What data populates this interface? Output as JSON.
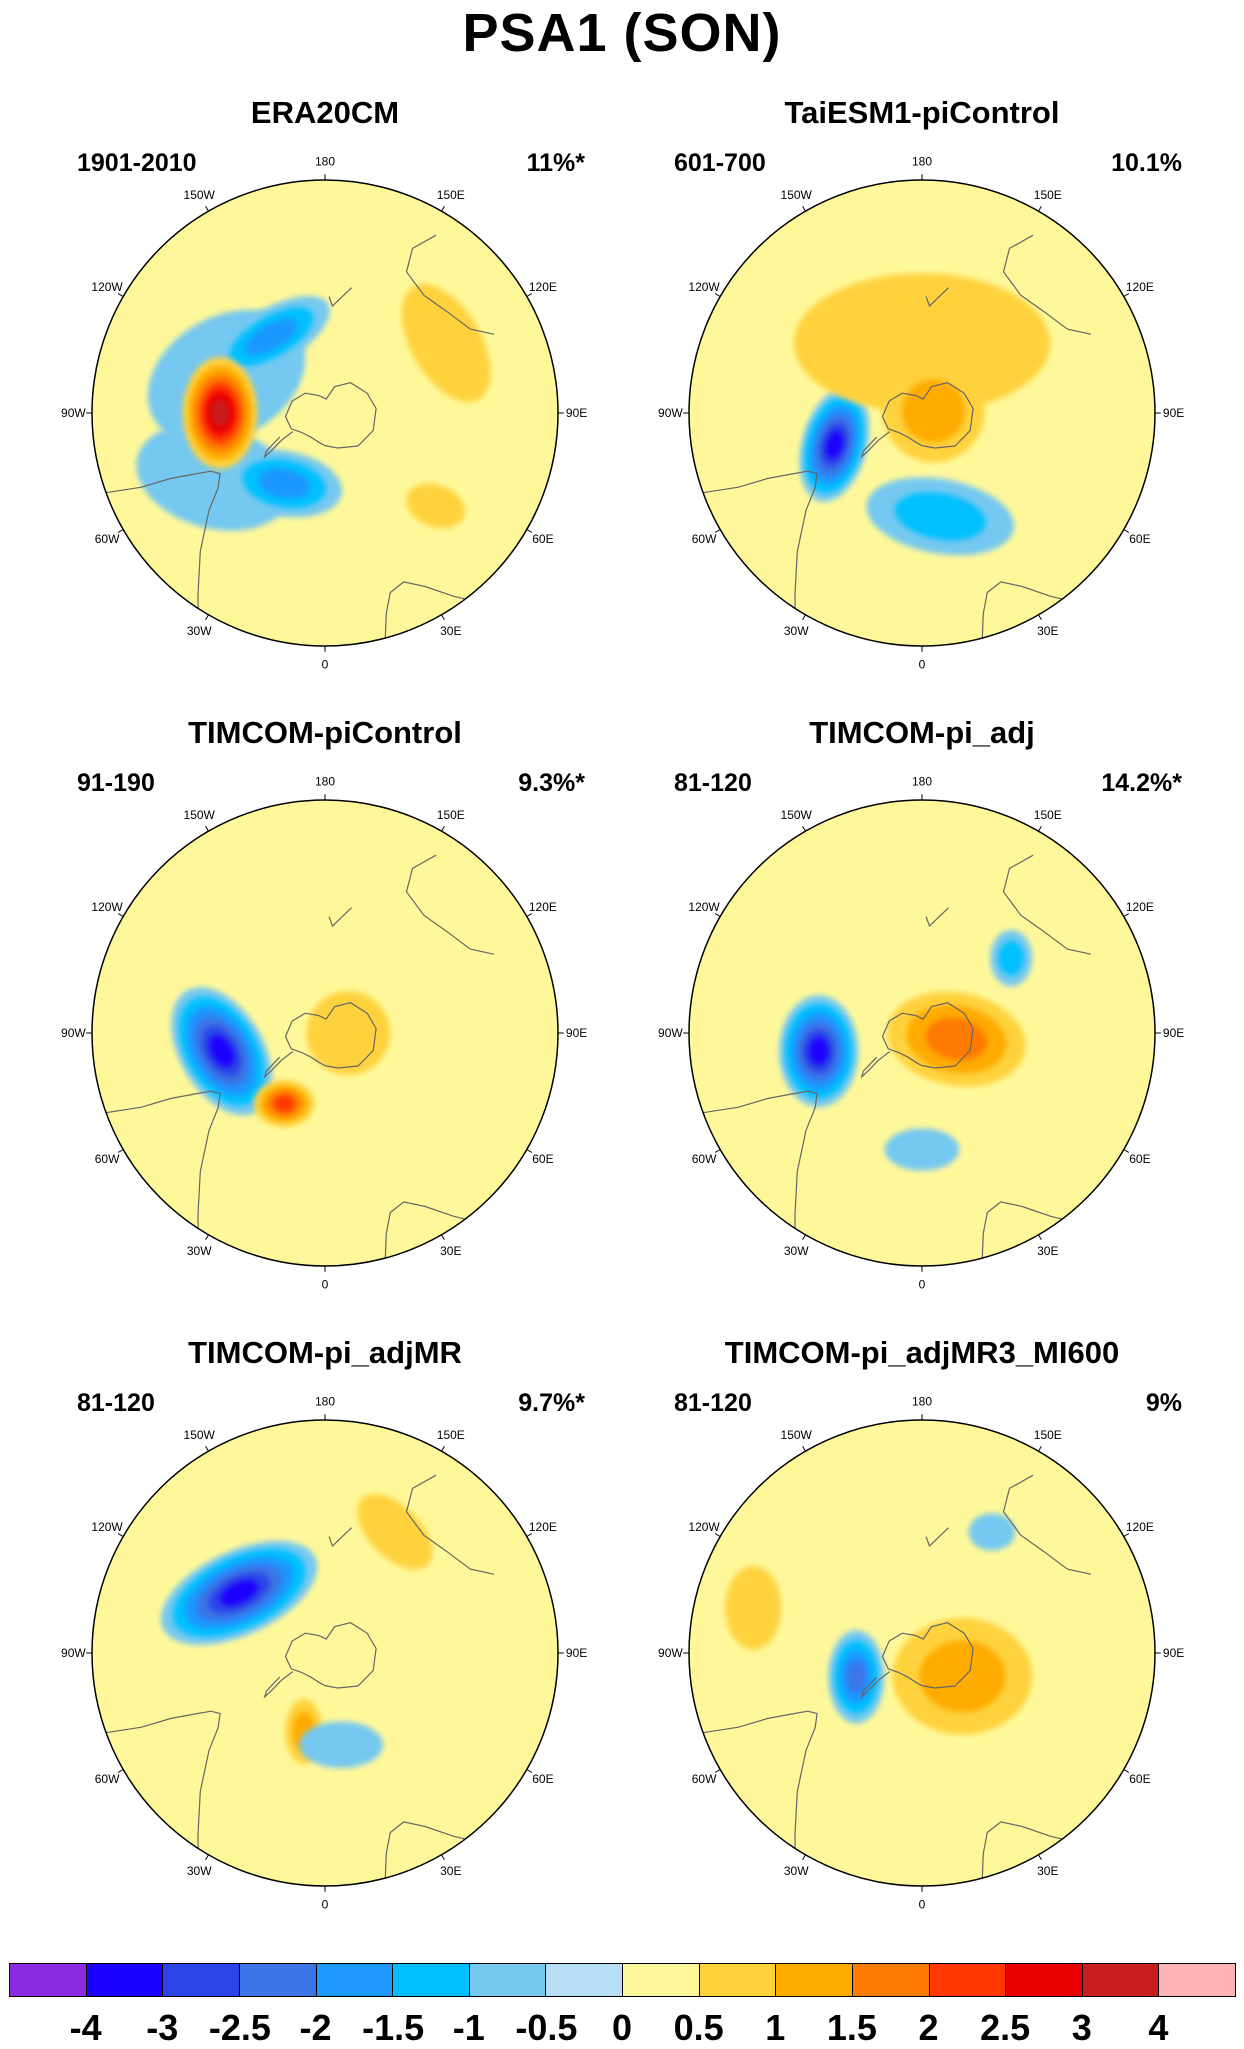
{
  "title": "PSA1 (SON)",
  "longitude_labels": [
    "0",
    "30E",
    "60E",
    "90E",
    "120E",
    "150E",
    "180",
    "150W",
    "120W",
    "90W",
    "60W",
    "30W"
  ],
  "panels": [
    {
      "title": "ERA20CM",
      "period": "1901-2010",
      "variance": "11%*",
      "blobs": [
        {
          "lon": 300,
          "r": 0.55,
          "rx": 0.34,
          "ry": 0.22,
          "rot": 15,
          "value": -0.5
        },
        {
          "lon": 250,
          "r": 0.45,
          "rx": 0.36,
          "ry": 0.26,
          "rot": -30,
          "value": -0.5
        },
        {
          "lon": 330,
          "r": 0.35,
          "rx": 0.25,
          "ry": 0.14,
          "rot": 10,
          "value": -1.5
        },
        {
          "lon": 215,
          "r": 0.4,
          "rx": 0.28,
          "ry": 0.12,
          "rot": -30,
          "value": -1.5
        },
        {
          "lon": 270,
          "r": 0.45,
          "rx": 0.16,
          "ry": 0.24,
          "rot": 0,
          "value": 3
        },
        {
          "lon": 120,
          "r": 0.6,
          "rx": 0.28,
          "ry": 0.15,
          "rot": 60,
          "value": 0.5
        },
        {
          "lon": 50,
          "r": 0.62,
          "rx": 0.13,
          "ry": 0.09,
          "rot": 20,
          "value": 0.5
        }
      ]
    },
    {
      "title": "TaiESM1-piControl",
      "period": "601-700",
      "variance": "10.1%",
      "blobs": [
        {
          "lon": 10,
          "r": 0.45,
          "rx": 0.32,
          "ry": 0.16,
          "rot": 10,
          "value": -1
        },
        {
          "lon": 290,
          "r": 0.4,
          "rx": 0.14,
          "ry": 0.25,
          "rot": 15,
          "value": -3
        },
        {
          "lon": 180,
          "r": 0.3,
          "rx": 0.55,
          "ry": 0.3,
          "rot": 0,
          "value": 0.5
        },
        {
          "lon": 100,
          "r": 0.05,
          "rx": 0.22,
          "ry": 0.22,
          "rot": 0,
          "value": 1
        }
      ]
    },
    {
      "title": "TIMCOM-piControl",
      "period": "91-190",
      "variance": "9.3%*",
      "blobs": [
        {
          "lon": 280,
          "r": 0.45,
          "rx": 0.18,
          "ry": 0.3,
          "rot": -30,
          "value": -3
        },
        {
          "lon": 330,
          "r": 0.35,
          "rx": 0.13,
          "ry": 0.1,
          "rot": 0,
          "value": 2
        },
        {
          "lon": 90,
          "r": 0.1,
          "rx": 0.18,
          "ry": 0.18,
          "rot": 0,
          "value": 0.5
        }
      ]
    },
    {
      "title": "TIMCOM-pi_adj",
      "period": "81-120",
      "variance": "14.2%*",
      "blobs": [
        {
          "lon": 280,
          "r": 0.45,
          "rx": 0.17,
          "ry": 0.24,
          "rot": 0,
          "value": -3
        },
        {
          "lon": 80,
          "r": 0.15,
          "rx": 0.3,
          "ry": 0.2,
          "rot": 10,
          "value": 1.5
        },
        {
          "lon": 130,
          "r": 0.5,
          "rx": 0.09,
          "ry": 0.12,
          "rot": 0,
          "value": -1
        },
        {
          "lon": 0,
          "r": 0.5,
          "rx": 0.16,
          "ry": 0.09,
          "rot": 0,
          "value": -0.5
        }
      ]
    },
    {
      "title": "TIMCOM-pi_adjMR",
      "period": "81-120",
      "variance": "9.7%*",
      "blobs": [
        {
          "lon": 235,
          "r": 0.45,
          "rx": 0.36,
          "ry": 0.18,
          "rot": -25,
          "value": -3
        },
        {
          "lon": 345,
          "r": 0.35,
          "rx": 0.08,
          "ry": 0.14,
          "rot": 0,
          "value": 1
        },
        {
          "lon": 150,
          "r": 0.6,
          "rx": 0.2,
          "ry": 0.11,
          "rot": 45,
          "value": 0.5
        },
        {
          "lon": 10,
          "r": 0.4,
          "rx": 0.18,
          "ry": 0.1,
          "rot": 0,
          "value": -0.5
        }
      ]
    },
    {
      "title": "TIMCOM-pi_adjMR3_MI600",
      "period": "81-120",
      "variance": "9%",
      "blobs": [
        {
          "lon": 290,
          "r": 0.3,
          "rx": 0.12,
          "ry": 0.2,
          "rot": 0,
          "value": -2
        },
        {
          "lon": 60,
          "r": 0.2,
          "rx": 0.3,
          "ry": 0.25,
          "rot": 0,
          "value": 1
        },
        {
          "lon": 255,
          "r": 0.75,
          "rx": 0.12,
          "ry": 0.18,
          "rot": 0,
          "value": 0.5
        },
        {
          "lon": 150,
          "r": 0.6,
          "rx": 0.1,
          "ry": 0.08,
          "rot": 0,
          "value": -0.5
        }
      ]
    }
  ],
  "colorbar": {
    "labels": [
      "-4",
      "-3",
      "-2.5",
      "-2",
      "-1.5",
      "-1",
      "-0.5",
      "0",
      "0.5",
      "1",
      "1.5",
      "2",
      "2.5",
      "3",
      "4"
    ],
    "colors": [
      "#8a2be2",
      "#1a00ff",
      "#2c44e8",
      "#3a75e6",
      "#1e97ff",
      "#00c0ff",
      "#75c8f0",
      "#b6def5",
      "#fff89a",
      "#ffd23c",
      "#ffab00",
      "#ff7a00",
      "#ff3700",
      "#eb0000",
      "#c81e1e",
      "#ffb4b4"
    ]
  }
}
